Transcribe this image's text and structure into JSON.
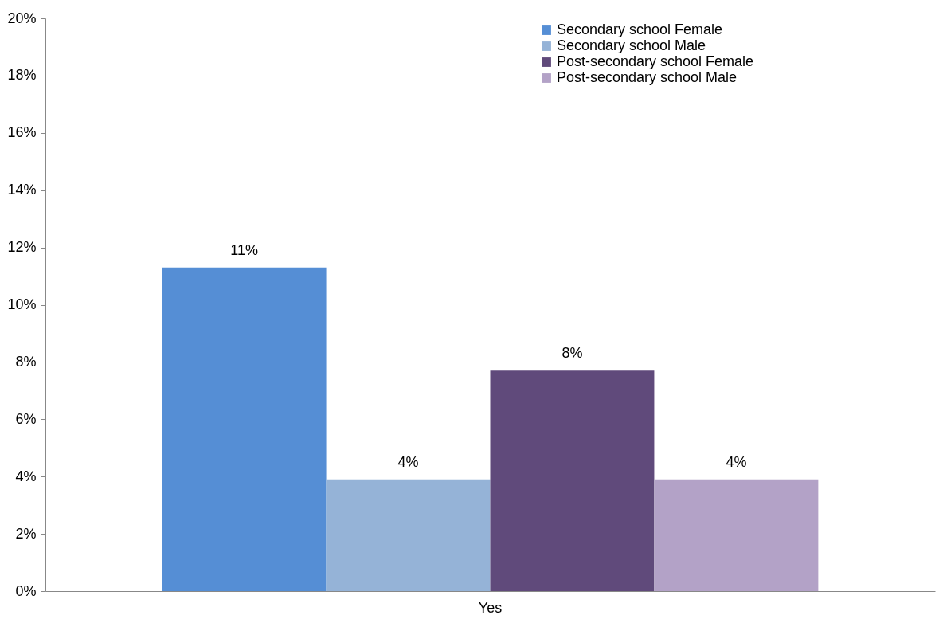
{
  "chart_data": {
    "type": "bar",
    "categories": [
      "Yes"
    ],
    "series": [
      {
        "name": "Secondary school Female",
        "color": "#558ed5",
        "values": [
          11.3
        ],
        "value_labels": [
          "11%"
        ]
      },
      {
        "name": "Secondary school Male",
        "color": "#95b3d7",
        "values": [
          3.9
        ],
        "value_labels": [
          "4%"
        ]
      },
      {
        "name": "Post-secondary school Female",
        "color": "#604a7b",
        "values": [
          7.7
        ],
        "value_labels": [
          "8%"
        ]
      },
      {
        "name": "Post-secondary school Male",
        "color": "#b3a2c7",
        "values": [
          3.9
        ],
        "value_labels": [
          "4%"
        ]
      }
    ],
    "ylim": [
      0,
      20
    ],
    "yticks": [
      {
        "value": 0,
        "label": "0%"
      },
      {
        "value": 2,
        "label": "2%"
      },
      {
        "value": 4,
        "label": "4%"
      },
      {
        "value": 6,
        "label": "6%"
      },
      {
        "value": 8,
        "label": "8%"
      },
      {
        "value": 10,
        "label": "10%"
      },
      {
        "value": 12,
        "label": "12%"
      },
      {
        "value": 14,
        "label": "14%"
      },
      {
        "value": 16,
        "label": "16%"
      },
      {
        "value": 18,
        "label": "18%"
      },
      {
        "value": 20,
        "label": "20%"
      }
    ],
    "legend": "top right"
  }
}
